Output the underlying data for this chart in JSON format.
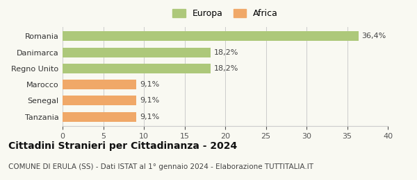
{
  "categories": [
    "Romania",
    "Danimarca",
    "Regno Unito",
    "Marocco",
    "Senegal",
    "Tanzania"
  ],
  "values": [
    36.4,
    18.2,
    18.2,
    9.1,
    9.1,
    9.1
  ],
  "labels": [
    "36,4%",
    "18,2%",
    "18,2%",
    "9,1%",
    "9,1%",
    "9,1%"
  ],
  "colors": [
    "#adc87a",
    "#adc87a",
    "#adc87a",
    "#f0a868",
    "#f0a868",
    "#f0a868"
  ],
  "legend_items": [
    {
      "label": "Europa",
      "color": "#adc87a"
    },
    {
      "label": "Africa",
      "color": "#f0a868"
    }
  ],
  "xlim": [
    0,
    40
  ],
  "xticks": [
    0,
    5,
    10,
    15,
    20,
    25,
    30,
    35,
    40
  ],
  "title_bold": "Cittadini Stranieri per Cittadinanza - 2024",
  "subtitle": "COMUNE DI ERULA (SS) - Dati ISTAT al 1° gennaio 2024 - Elaborazione TUTTITALIA.IT",
  "background_color": "#f9f9f2",
  "bar_edge_color": "none",
  "title_fontsize": 10,
  "subtitle_fontsize": 7.5,
  "label_fontsize": 8,
  "tick_fontsize": 8,
  "legend_fontsize": 9
}
